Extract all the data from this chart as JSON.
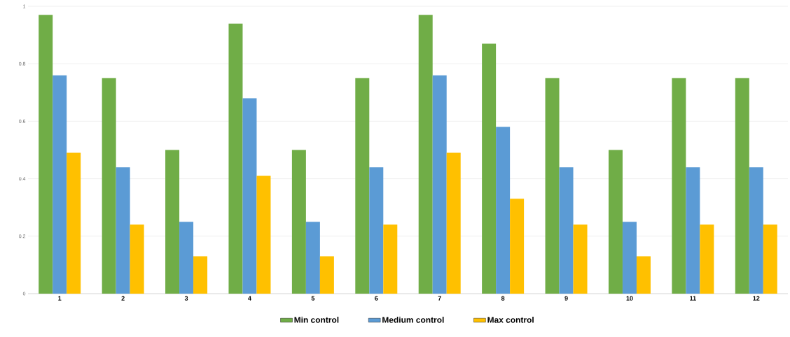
{
  "chart_data": {
    "type": "bar",
    "categories": [
      "1",
      "2",
      "3",
      "4",
      "5",
      "6",
      "7",
      "8",
      "9",
      "10",
      "11",
      "12"
    ],
    "series": [
      {
        "name": "Min control",
        "color": "#70ad47",
        "values": [
          0.97,
          0.75,
          0.5,
          0.94,
          0.5,
          0.75,
          0.97,
          0.87,
          0.75,
          0.5,
          0.75,
          0.75
        ]
      },
      {
        "name": "Medium control",
        "color": "#5b9bd5",
        "values": [
          0.76,
          0.44,
          0.25,
          0.68,
          0.25,
          0.44,
          0.76,
          0.58,
          0.44,
          0.25,
          0.44,
          0.44
        ]
      },
      {
        "name": "Max control",
        "color": "#ffc000",
        "values": [
          0.49,
          0.24,
          0.13,
          0.41,
          0.13,
          0.24,
          0.49,
          0.33,
          0.24,
          0.13,
          0.24,
          0.24
        ]
      }
    ],
    "ylim": [
      0,
      1
    ],
    "yticks": [
      0,
      {
        "value": 0.2,
        "label": "0.2"
      },
      {
        "value": 0.4,
        "label": "0.4"
      },
      {
        "value": 0.6,
        "label": "0.6"
      },
      {
        "value": 0.8,
        "label": "0.8"
      },
      1
    ],
    "grid": "y",
    "legend": "bottom"
  }
}
